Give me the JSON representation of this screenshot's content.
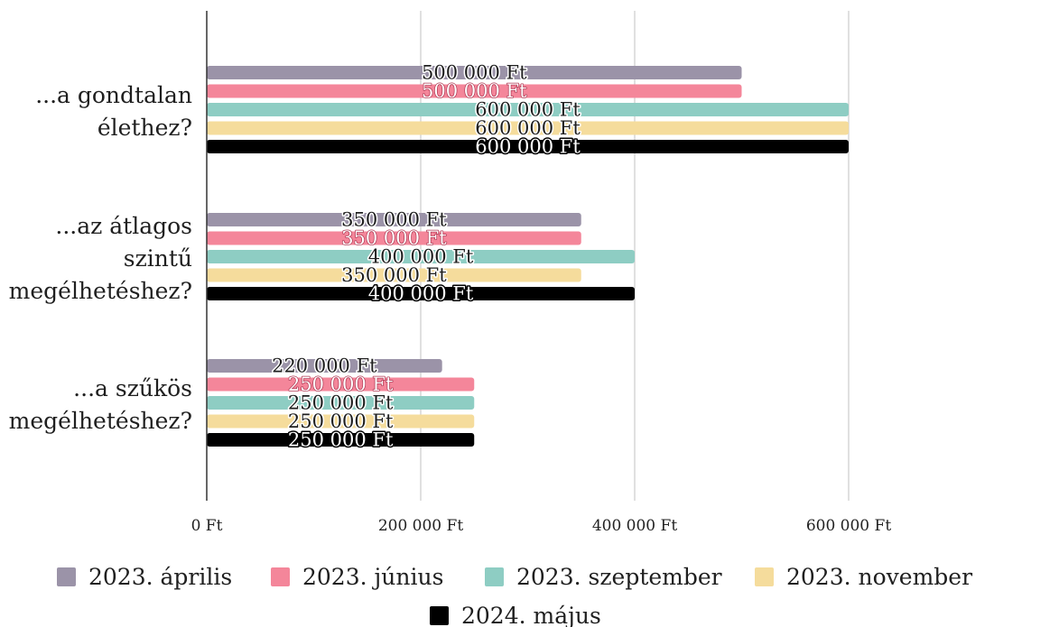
{
  "chart_data": {
    "type": "bar",
    "orientation": "horizontal",
    "categories": [
      [
        "...a gondtalan",
        "élethez?"
      ],
      [
        "...az átlagos",
        "szintű",
        "megélhetéshez?"
      ],
      [
        "...a szűkös",
        "megélhetéshez?"
      ]
    ],
    "series": [
      {
        "name": "2023. április",
        "color": "#9b93a8",
        "values": [
          500000,
          350000,
          220000
        ],
        "labels": [
          "500 000 Ft",
          "350 000 Ft",
          "220 000 Ft"
        ]
      },
      {
        "name": "2023. június",
        "color": "#f4869a",
        "values": [
          500000,
          350000,
          250000
        ],
        "labels": [
          "500 000 Ft",
          "350 000 Ft",
          "250 000 Ft"
        ]
      },
      {
        "name": "2023. szeptember",
        "color": "#8ecdc3",
        "values": [
          600000,
          400000,
          250000
        ],
        "labels": [
          "600 000 Ft",
          "400 000 Ft",
          "250 000 Ft"
        ]
      },
      {
        "name": "2023. november",
        "color": "#f5dc9c",
        "values": [
          600000,
          350000,
          250000
        ],
        "labels": [
          "600 000 Ft",
          "350 000 Ft",
          "250 000 Ft"
        ]
      },
      {
        "name": "2024. május",
        "color": "#000000",
        "values": [
          600000,
          400000,
          250000
        ],
        "labels": [
          "600 000 Ft",
          "400 000 Ft",
          "250 000 Ft"
        ]
      }
    ],
    "x_ticks": [
      {
        "value": 0,
        "label": "0 Ft"
      },
      {
        "value": 200000,
        "label": "200 000 Ft"
      },
      {
        "value": 400000,
        "label": "400 000 Ft"
      },
      {
        "value": 600000,
        "label": "600 000 Ft"
      }
    ],
    "xlim": [
      0,
      800000
    ],
    "grid": true,
    "legend_position": "bottom",
    "title": "",
    "xlabel": "",
    "ylabel": ""
  }
}
